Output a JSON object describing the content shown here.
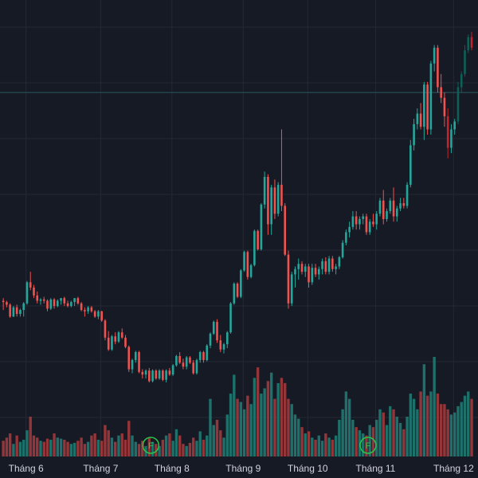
{
  "chart_data": {
    "type": "candlestick",
    "title": "",
    "x_axis_labels": [
      "Tháng 6",
      "Tháng 7",
      "Tháng 8",
      "Tháng 9",
      "Tháng 10",
      "Tháng 11",
      "Tháng 12"
    ],
    "month_start_index": [
      2,
      24,
      45,
      66,
      85,
      105,
      128
    ],
    "grid": true,
    "colors": {
      "background": "#161a25",
      "up": "#26a69a",
      "down": "#ef5350",
      "up_dark": "#0d5f57",
      "down_dark": "#c0252b",
      "volume_up": "#1f7a72",
      "volume_down": "#a23a3c",
      "grid": "#232834",
      "price_line": "#2a5a5e",
      "axis_text": "#d1d4dc",
      "flag": "#2bc44a"
    },
    "flags": [
      {
        "label": "F",
        "index": 43
      },
      {
        "label": "F",
        "index": 107
      }
    ],
    "reference_price": 100,
    "price_range": [
      0,
      123
    ],
    "candles": [
      [
        21,
        22,
        17.5,
        20.5,
        15
      ],
      [
        20.5,
        21,
        18.5,
        19.5,
        18
      ],
      [
        19.5,
        20,
        14.5,
        15,
        22
      ],
      [
        15,
        19,
        14.8,
        18.5,
        12
      ],
      [
        18.5,
        19.5,
        15,
        16,
        20
      ],
      [
        16,
        18,
        15,
        17.5,
        14
      ],
      [
        17.5,
        20.5,
        15,
        20,
        16
      ],
      [
        20,
        28.5,
        19.5,
        28,
        25
      ],
      [
        28,
        32,
        25,
        26,
        38
      ],
      [
        26,
        27,
        22,
        23,
        20
      ],
      [
        23,
        24.5,
        20,
        21,
        18
      ],
      [
        21,
        22,
        19.5,
        21.5,
        15
      ],
      [
        21.5,
        22.5,
        20,
        21,
        14
      ],
      [
        21,
        21.5,
        17,
        18,
        17
      ],
      [
        18,
        22,
        17.5,
        21.5,
        16
      ],
      [
        21.5,
        22,
        18,
        19,
        22
      ],
      [
        19,
        21.5,
        18.5,
        21,
        18
      ],
      [
        21,
        22,
        19.5,
        22,
        17
      ],
      [
        22,
        22.5,
        19,
        20,
        16
      ],
      [
        20,
        21,
        18.5,
        19,
        14
      ],
      [
        19,
        21,
        18.5,
        20.5,
        12
      ],
      [
        20.5,
        22,
        19,
        22,
        13
      ],
      [
        22,
        22.5,
        19.5,
        20,
        15
      ],
      [
        20,
        20.5,
        17,
        17.5,
        18
      ],
      [
        17.5,
        18.5,
        15,
        17,
        12
      ],
      [
        17,
        19,
        16,
        18.5,
        14
      ],
      [
        18.5,
        19,
        16.5,
        17,
        20
      ],
      [
        17,
        17.5,
        14.5,
        15,
        22
      ],
      [
        15,
        17.5,
        14,
        17,
        16
      ],
      [
        17,
        17.2,
        13,
        13.5,
        15
      ],
      [
        13.5,
        14,
        6,
        7,
        30
      ],
      [
        7,
        9.5,
        2,
        2.5,
        25
      ],
      [
        2.5,
        8,
        2,
        7.5,
        18
      ],
      [
        7.5,
        9,
        4.5,
        5.5,
        14
      ],
      [
        5.5,
        9.5,
        5,
        9,
        20
      ],
      [
        9,
        10.5,
        6.5,
        7,
        22
      ],
      [
        7,
        8,
        3,
        3.5,
        16
      ],
      [
        3.5,
        4,
        -6,
        -5,
        34
      ],
      [
        -5,
        -1,
        -6.5,
        -1.5,
        20
      ],
      [
        -1.5,
        2,
        -2.5,
        1.5,
        14
      ],
      [
        1.5,
        2,
        -6.5,
        -6,
        12
      ],
      [
        -6,
        -5,
        -8.5,
        -7,
        15
      ],
      [
        -7,
        -5,
        -8.5,
        -5.5,
        10
      ],
      [
        -5.5,
        -4.5,
        -10,
        -9.5,
        18
      ],
      [
        -9.5,
        -5,
        -10,
        -5.5,
        14
      ],
      [
        -5.5,
        -5,
        -9,
        -8.5,
        12
      ],
      [
        -8.5,
        -5,
        -9,
        -5.5,
        10
      ],
      [
        -5.5,
        -5,
        -9.5,
        -9,
        16
      ],
      [
        -9,
        -5,
        -10,
        -5.5,
        20
      ],
      [
        -5.5,
        -4.5,
        -7.5,
        -7,
        22
      ],
      [
        -7,
        -3,
        -7.5,
        -3.5,
        15
      ],
      [
        -3.5,
        0.5,
        -4,
        0,
        26
      ],
      [
        0,
        1.5,
        -3,
        -2.5,
        20
      ],
      [
        -2.5,
        -1,
        -5,
        -4,
        12
      ],
      [
        -4,
        0,
        -5,
        -0.5,
        10
      ],
      [
        -0.5,
        0,
        -3,
        -2.5,
        13
      ],
      [
        -2.5,
        -1.5,
        -7,
        -6.5,
        18
      ],
      [
        -6.5,
        -1,
        -7,
        -1.5,
        15
      ],
      [
        -1.5,
        2,
        -2.5,
        1.5,
        24
      ],
      [
        1.5,
        2,
        -2.5,
        -1.5,
        16
      ],
      [
        -1.5,
        4.5,
        -2,
        4,
        20
      ],
      [
        4,
        9,
        3,
        8.5,
        55
      ],
      [
        8.5,
        13.5,
        8,
        13,
        30
      ],
      [
        13,
        14,
        5,
        6,
        35
      ],
      [
        6,
        8,
        1.5,
        2.5,
        25
      ],
      [
        2.5,
        5,
        1,
        4.5,
        18
      ],
      [
        4.5,
        9.5,
        3,
        9,
        40
      ],
      [
        9,
        20.5,
        8.5,
        20,
        60
      ],
      [
        20,
        28,
        19.5,
        27.5,
        78
      ],
      [
        27.5,
        28,
        22,
        22.5,
        55
      ],
      [
        22.5,
        33,
        22,
        32.5,
        52
      ],
      [
        32.5,
        40,
        32,
        39.5,
        45
      ],
      [
        39.5,
        40,
        29,
        30,
        58
      ],
      [
        30,
        35,
        29.5,
        34.5,
        50
      ],
      [
        34.5,
        48,
        34,
        47.5,
        75
      ],
      [
        47.5,
        48,
        40,
        40.5,
        85
      ],
      [
        40.5,
        58,
        40,
        57.5,
        60
      ],
      [
        57.5,
        70,
        56,
        68,
        65
      ],
      [
        68,
        69,
        46,
        50,
        72
      ],
      [
        50,
        65,
        46,
        64,
        80
      ],
      [
        64,
        67,
        52,
        54,
        55
      ],
      [
        54,
        66,
        53,
        65,
        70
      ],
      [
        65,
        86,
        55,
        57,
        75
      ],
      [
        57,
        58,
        38,
        38.5,
        70
      ],
      [
        38.5,
        40,
        18,
        20,
        55
      ],
      [
        20,
        32,
        19,
        31,
        50
      ],
      [
        31,
        34,
        26,
        33,
        40
      ],
      [
        33,
        37,
        29,
        35,
        36
      ],
      [
        35,
        36,
        31,
        32,
        28
      ],
      [
        32,
        35,
        30,
        34,
        22
      ],
      [
        34,
        35,
        26,
        28,
        24
      ],
      [
        28,
        35,
        27,
        33.5,
        18
      ],
      [
        33.5,
        35,
        30,
        31,
        16
      ],
      [
        31,
        34,
        29,
        33,
        20
      ],
      [
        33,
        37,
        31,
        36,
        15
      ],
      [
        36,
        37.5,
        31,
        32,
        22
      ],
      [
        32,
        38,
        31,
        37,
        18
      ],
      [
        37,
        38,
        32,
        33,
        16
      ],
      [
        33,
        35,
        31,
        34,
        20
      ],
      [
        34,
        38,
        33,
        37.5,
        35
      ],
      [
        37.5,
        44,
        37,
        43,
        45
      ],
      [
        43,
        48,
        42,
        47,
        62
      ],
      [
        47,
        51,
        45,
        49,
        55
      ],
      [
        49,
        55,
        48,
        53,
        35
      ],
      [
        53,
        55,
        48,
        50,
        28
      ],
      [
        50,
        53,
        48,
        52,
        25
      ],
      [
        52,
        54,
        50,
        53,
        22
      ],
      [
        53,
        54,
        46,
        47,
        20
      ],
      [
        47,
        52,
        46,
        51,
        30
      ],
      [
        51,
        54,
        49,
        50,
        28
      ],
      [
        50,
        55,
        48,
        54,
        35
      ],
      [
        54,
        60,
        53,
        59,
        45
      ],
      [
        59,
        63,
        50,
        52,
        42
      ],
      [
        52,
        56,
        51,
        55,
        30
      ],
      [
        55,
        60,
        54,
        59,
        48
      ],
      [
        59,
        64,
        51,
        53,
        45
      ],
      [
        53,
        57,
        51,
        56,
        38
      ],
      [
        56,
        60,
        55,
        58,
        32
      ],
      [
        58,
        60,
        56,
        57,
        26
      ],
      [
        57,
        66,
        56,
        65,
        38
      ],
      [
        65,
        82,
        64,
        80,
        60
      ],
      [
        80,
        90,
        78,
        88,
        55
      ],
      [
        88,
        94,
        86,
        92,
        45
      ],
      [
        92,
        96,
        86,
        87,
        62
      ],
      [
        87,
        104,
        82,
        103,
        88
      ],
      [
        103,
        104,
        84,
        86,
        58
      ],
      [
        86,
        112,
        84,
        111,
        62
      ],
      [
        111,
        118,
        108,
        117,
        95
      ],
      [
        117,
        118,
        100,
        102,
        60
      ],
      [
        102,
        107,
        96,
        98,
        50
      ],
      [
        98,
        100,
        87,
        91,
        50
      ],
      [
        91,
        94,
        75,
        79,
        45
      ],
      [
        79,
        88,
        77,
        86,
        40
      ],
      [
        86,
        90,
        84,
        89,
        42
      ],
      [
        89,
        104,
        88,
        102,
        48
      ],
      [
        102,
        108,
        100,
        107,
        52
      ],
      [
        107,
        118,
        106,
        116,
        58
      ],
      [
        116,
        122,
        115,
        121,
        62
      ],
      [
        121,
        123,
        116,
        117,
        55
      ]
    ]
  }
}
